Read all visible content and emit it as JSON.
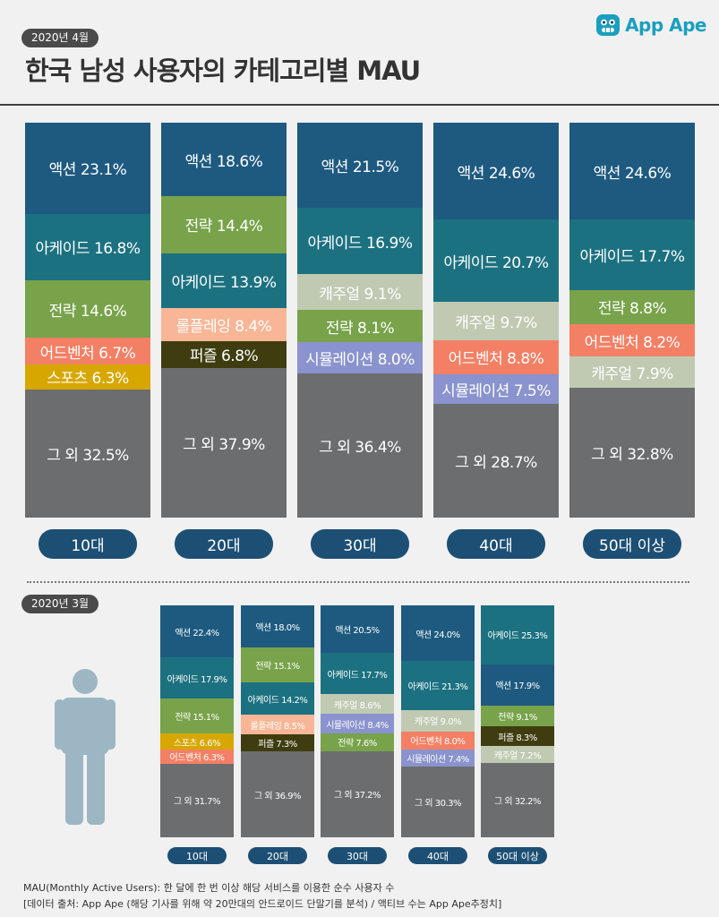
{
  "header": {
    "date_badge": "2020년 4월",
    "title": "한국 남성 사용자의 카테고리별 MAU",
    "brand": "App Ape"
  },
  "previous": {
    "date_badge": "2020년 3월"
  },
  "footnotes": {
    "line1": "MAU(Monthly Active Users):  한 달에 한 번 이상 해당 서비스를 이용한 순수 사용자 수",
    "line2": "[데이터 출처: App Ape (해당 기사를 위해 약 20만대의 안드로이드 단말기를 분석) / 액티브 수는 App Ape추정치]"
  },
  "colors": {
    "액션": "#1e5a80",
    "아케이드": "#1c7181",
    "전략": "#78a34a",
    "어드벤처": "#f38065",
    "스포츠": "#d7a700",
    "롤플레잉": "#f8b696",
    "퍼즐": "#3f3d10",
    "캐주얼": "#c0cab2",
    "시뮬레이션": "#8a93cd",
    "그 외": "#6c6d6f",
    "age_button": "#1d4f74",
    "title_line": "#3e3e3e",
    "brand": "#1a9fbf"
  },
  "chart_data": [
    {
      "type": "stacked_bar",
      "title": "한국 남성 사용자의 카테고리별 MAU (2020년 4월)",
      "unit": "%",
      "categories": [
        "10대",
        "20대",
        "30대",
        "40대",
        "50대 이상"
      ],
      "stacks": [
        [
          {
            "name": "액션",
            "value": 23.1
          },
          {
            "name": "아케이드",
            "value": 16.8
          },
          {
            "name": "전략",
            "value": 14.6
          },
          {
            "name": "어드벤처",
            "value": 6.7
          },
          {
            "name": "스포츠",
            "value": 6.3
          },
          {
            "name": "그 외",
            "value": 32.5
          }
        ],
        [
          {
            "name": "액션",
            "value": 18.6
          },
          {
            "name": "전략",
            "value": 14.4
          },
          {
            "name": "아케이드",
            "value": 13.9
          },
          {
            "name": "롤플레잉",
            "value": 8.4
          },
          {
            "name": "퍼즐",
            "value": 6.8
          },
          {
            "name": "그 외",
            "value": 37.9
          }
        ],
        [
          {
            "name": "액션",
            "value": 21.5
          },
          {
            "name": "아케이드",
            "value": 16.9
          },
          {
            "name": "캐주얼",
            "value": 9.1
          },
          {
            "name": "전략",
            "value": 8.1
          },
          {
            "name": "시뮬레이션",
            "value": 8.0
          },
          {
            "name": "그 외",
            "value": 36.4
          }
        ],
        [
          {
            "name": "액션",
            "value": 24.6
          },
          {
            "name": "아케이드",
            "value": 20.7
          },
          {
            "name": "캐주얼",
            "value": 9.7
          },
          {
            "name": "어드벤처",
            "value": 8.8
          },
          {
            "name": "시뮬레이션",
            "value": 7.5
          },
          {
            "name": "그 외",
            "value": 28.7
          }
        ],
        [
          {
            "name": "액션",
            "value": 24.6
          },
          {
            "name": "아케이드",
            "value": 17.7
          },
          {
            "name": "전략",
            "value": 8.8
          },
          {
            "name": "어드벤처",
            "value": 8.2
          },
          {
            "name": "캐주얼",
            "value": 7.9
          },
          {
            "name": "그 외",
            "value": 32.8
          }
        ]
      ]
    },
    {
      "type": "stacked_bar",
      "title": "한국 남성 사용자의 카테고리별 MAU (2020년 3월)",
      "unit": "%",
      "categories": [
        "10대",
        "20대",
        "30대",
        "40대",
        "50대 이상"
      ],
      "stacks": [
        [
          {
            "name": "액션",
            "value": 22.4
          },
          {
            "name": "아케이드",
            "value": 17.9
          },
          {
            "name": "전략",
            "value": 15.1
          },
          {
            "name": "스포츠",
            "value": 6.6
          },
          {
            "name": "어드벤처",
            "value": 6.3
          },
          {
            "name": "그 외",
            "value": 31.7
          }
        ],
        [
          {
            "name": "액션",
            "value": 18.0
          },
          {
            "name": "전략",
            "value": 15.1
          },
          {
            "name": "아케이드",
            "value": 14.2
          },
          {
            "name": "롤플레잉",
            "value": 8.5
          },
          {
            "name": "퍼즐",
            "value": 7.3
          },
          {
            "name": "그 외",
            "value": 36.9
          }
        ],
        [
          {
            "name": "액션",
            "value": 20.5
          },
          {
            "name": "아케이드",
            "value": 17.7
          },
          {
            "name": "캐주얼",
            "value": 8.6
          },
          {
            "name": "시뮬레이션",
            "value": 8.4
          },
          {
            "name": "전략",
            "value": 7.6
          },
          {
            "name": "그 외",
            "value": 37.2
          }
        ],
        [
          {
            "name": "액션",
            "value": 24.0
          },
          {
            "name": "아케이드",
            "value": 21.3
          },
          {
            "name": "캐주얼",
            "value": 9.0
          },
          {
            "name": "어드벤처",
            "value": 8.0
          },
          {
            "name": "시뮬레이션",
            "value": 7.4
          },
          {
            "name": "그 외",
            "value": 30.3
          }
        ],
        [
          {
            "name": "아케이드",
            "value": 25.3
          },
          {
            "name": "액션",
            "value": 17.9
          },
          {
            "name": "전략",
            "value": 9.1
          },
          {
            "name": "퍼즐",
            "value": 8.3
          },
          {
            "name": "캐주얼",
            "value": 7.2
          },
          {
            "name": "그 외",
            "value": 32.2
          }
        ]
      ]
    }
  ]
}
